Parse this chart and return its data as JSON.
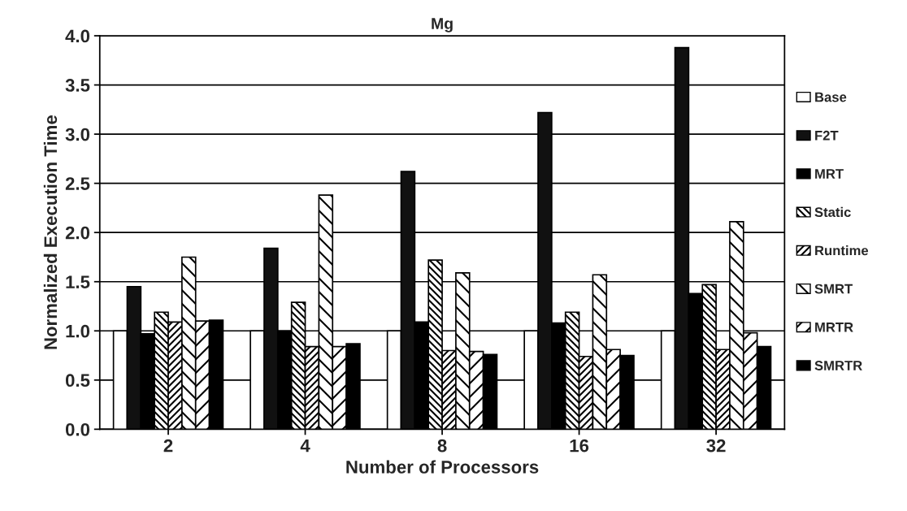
{
  "chart_data": {
    "type": "bar",
    "title": "Mg",
    "xlabel": "Number of Processors",
    "ylabel": "Normalized Execution Time",
    "categories": [
      "2",
      "4",
      "8",
      "16",
      "32"
    ],
    "series": [
      {
        "name": "Base",
        "color": "#ffffff",
        "values": [
          1.0,
          1.0,
          1.0,
          1.0,
          1.0
        ]
      },
      {
        "name": "F2T",
        "color": "#111111",
        "values": [
          1.45,
          1.84,
          2.62,
          3.22,
          3.88
        ]
      },
      {
        "name": "MRT",
        "color": "#000000",
        "values": [
          0.97,
          1.0,
          1.09,
          1.08,
          1.38
        ]
      },
      {
        "name": "Static",
        "color": "#000000",
        "values": [
          1.19,
          1.29,
          1.72,
          1.19,
          1.47
        ]
      },
      {
        "name": "Runtime",
        "color": "#000000",
        "values": [
          1.09,
          0.84,
          0.8,
          0.74,
          0.81
        ]
      },
      {
        "name": "SMRT",
        "color": "#000000",
        "values": [
          1.75,
          2.38,
          1.59,
          1.57,
          2.11
        ]
      },
      {
        "name": "MRTR",
        "color": "#000000",
        "values": [
          1.1,
          0.84,
          0.79,
          0.81,
          0.98
        ]
      },
      {
        "name": "SMRTR",
        "color": "#000000",
        "values": [
          1.11,
          0.87,
          0.76,
          0.75,
          0.84
        ]
      }
    ],
    "ylim": [
      0,
      4
    ],
    "yticks": [
      {
        "value": 0,
        "label": "0.0"
      },
      {
        "value": 0.5,
        "label": "0.5"
      },
      {
        "value": 1,
        "label": "1.0"
      },
      {
        "value": 1.5,
        "label": "1.5"
      },
      {
        "value": 2,
        "label": "2.0"
      },
      {
        "value": 2.5,
        "label": "2.5"
      },
      {
        "value": 3,
        "label": "3.0"
      },
      {
        "value": 3.5,
        "label": "3.5"
      },
      {
        "value": 4,
        "label": "4.0"
      }
    ],
    "grid": "y",
    "legend": "right"
  }
}
